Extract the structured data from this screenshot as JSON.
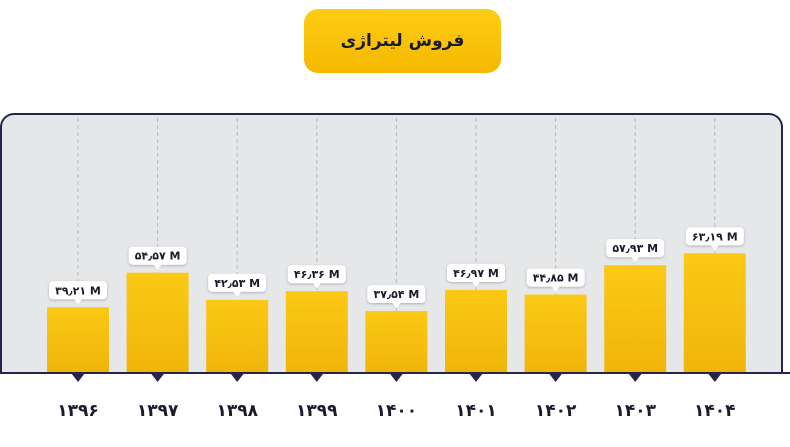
{
  "title": "فروش لیتراژی",
  "colors": {
    "accent": "#f9c213",
    "dark": "#25264a",
    "panel": "#e6e7e8",
    "label_bg": "#ffffff"
  },
  "chart_data": {
    "type": "bar",
    "title": "فروش لیتراژی",
    "xlabel": "",
    "ylabel": "",
    "grid": false,
    "categories": [
      "۱۳۹۶",
      "۱۳۹۷",
      "۱۳۹۸",
      "۱۳۹۹",
      "۱۴۰۰",
      "۱۴۰۱",
      "۱۴۰۲",
      "۱۴۰۳",
      "۱۴۰۴"
    ],
    "values": [
      39.21,
      54.57,
      42.53,
      46.36,
      37.54,
      46.97,
      44.85,
      57.93,
      63.19
    ],
    "value_labels": [
      "۳۹٫۲۱ M",
      "۵۴٫۵۷ M",
      "۴۲٫۵۳ M",
      "۴۶٫۳۶ M",
      "۳۷٫۵۴ M",
      "۴۶٫۹۷ M",
      "۴۴٫۸۵ M",
      "۵۷٫۹۳ M",
      "۶۳٫۱۹ M"
    ]
  }
}
